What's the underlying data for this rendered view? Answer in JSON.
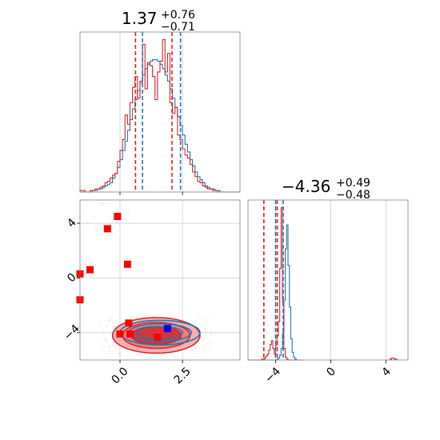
{
  "colors": {
    "blue": "#1f77b4",
    "red": "#d62728",
    "red_fill_light": "#f4a3a3",
    "red_fill_dark": "#d62728",
    "marker_red": "#ff0000",
    "marker_blue": "#0000ff",
    "grid": "#d0d0d0",
    "spine": "#7f7f7f"
  },
  "chart_data": [
    {
      "type": "histogram",
      "panel": "top-left",
      "title": {
        "value": "1.37",
        "upper": "+0.76",
        "lower": "−0.71"
      },
      "xlim": [
        -1.6,
        4.8
      ],
      "x_tick_values": [
        0.0,
        2.5
      ],
      "x_tick_labels": [
        "",
        ""
      ],
      "grid": true,
      "quantile_lines": {
        "red": [
          0.62,
          2.08
        ],
        "blue": [
          0.9,
          2.42
        ]
      },
      "series": [
        {
          "color": "blue",
          "bin_start": -1.6,
          "bin_width": 0.1,
          "counts": [
            0,
            0,
            0,
            0,
            0,
            1,
            1,
            2,
            2,
            3,
            4,
            5,
            6,
            9,
            12,
            16,
            21,
            27,
            33,
            40,
            47,
            54,
            60,
            66,
            71,
            76,
            80,
            83,
            85,
            86,
            86,
            85,
            83,
            80,
            76,
            72,
            67,
            61,
            55,
            49,
            43,
            37,
            31,
            26,
            21,
            17,
            13,
            10,
            8,
            6,
            4,
            3,
            2,
            2,
            1,
            1,
            0,
            0,
            0,
            0,
            0,
            0,
            0,
            0
          ]
        },
        {
          "color": "red",
          "bin_start": -1.6,
          "bin_width": 0.1,
          "counts": [
            1,
            1,
            0,
            0,
            1,
            1,
            2,
            2,
            3,
            4,
            6,
            7,
            9,
            11,
            12,
            20,
            27,
            34,
            50,
            44,
            58,
            68,
            75,
            61,
            72,
            96,
            67,
            84,
            82,
            75,
            60,
            78,
            85,
            99,
            78,
            90,
            58,
            51,
            55,
            37,
            34,
            28,
            24,
            22,
            18,
            13,
            10,
            7,
            6,
            4,
            3,
            2,
            2,
            1,
            1,
            0,
            0,
            0,
            0,
            0,
            0,
            0,
            0,
            0
          ]
        }
      ]
    },
    {
      "type": "histogram",
      "panel": "bottom-right",
      "title": {
        "value": "−4.36",
        "upper": "+0.49",
        "lower": "−0.48"
      },
      "xlim": [
        -6.0,
        5.6
      ],
      "x_tick_values": [
        -4,
        0,
        4
      ],
      "x_tick_labels": [
        "−4",
        "0",
        "4"
      ],
      "grid": true,
      "quantile_lines": {
        "red": [
          -4.85,
          -3.88
        ],
        "blue": [
          -4.0,
          -3.45
        ]
      },
      "series": [
        {
          "color": "blue",
          "bin_start": -6.0,
          "bin_width": 0.1,
          "counts": [
            0,
            0,
            0,
            0,
            0,
            0,
            0,
            0,
            0,
            0,
            0,
            0,
            0,
            0,
            0,
            0,
            0,
            0,
            0,
            0,
            0,
            1,
            2,
            5,
            12,
            28,
            62,
            115,
            140,
            98,
            55,
            22,
            8,
            3,
            1,
            0,
            0,
            0,
            0,
            0
          ]
        },
        {
          "color": "red",
          "bin_start": -6.0,
          "bin_width": 0.1,
          "counts": [
            0,
            0,
            0,
            0,
            0,
            0,
            0,
            0,
            0,
            0,
            1,
            1,
            2,
            4,
            6,
            10,
            16,
            20,
            12,
            6,
            15,
            25,
            40,
            95,
            158,
            60,
            12,
            3,
            1,
            0,
            0,
            0,
            0,
            0,
            0,
            0,
            0,
            0,
            0,
            0
          ]
        },
        {
          "color": "red",
          "bin_start": 4.3,
          "bin_width": 0.1,
          "counts": [
            1,
            2,
            2,
            1,
            1
          ]
        }
      ]
    },
    {
      "type": "scatter",
      "panel": "bottom-left",
      "xlim": [
        -1.6,
        4.8
      ],
      "ylim": [
        -6.0,
        5.7
      ],
      "x_tick_values": [
        0.0,
        2.5
      ],
      "x_tick_labels": [
        "0.0",
        "2.5"
      ],
      "y_tick_values": [
        -4,
        0,
        4
      ],
      "y_tick_labels": [
        "−4",
        "0",
        "4"
      ],
      "grid": true,
      "red_markers": [
        {
          "x": -0.1,
          "y": 4.5
        },
        {
          "x": -0.5,
          "y": 3.6
        },
        {
          "x": -1.2,
          "y": 0.6
        },
        {
          "x": 0.3,
          "y": 1.0
        },
        {
          "x": -1.6,
          "y": 0.3
        },
        {
          "x": -1.6,
          "y": -1.6
        },
        {
          "x": 0.35,
          "y": -3.3
        },
        {
          "x": 0.0,
          "y": -4.1
        },
        {
          "x": 0.4,
          "y": -4.1
        },
        {
          "x": 1.5,
          "y": -4.35
        }
      ],
      "blue_markers": [
        {
          "x": 1.9,
          "y": -3.7
        }
      ],
      "density_contours": {
        "blue": {
          "center": [
            1.6,
            -4.0
          ],
          "levels": [
            [
              1.6,
              0.9
            ],
            [
              1.25,
              0.65
            ],
            [
              0.9,
              0.45
            ]
          ]
        },
        "red": {
          "center": [
            1.45,
            -4.2
          ],
          "levels": [
            [
              1.75,
              1.3
            ],
            [
              1.35,
              0.95
            ],
            [
              1.0,
              0.65
            ]
          ]
        }
      }
    }
  ]
}
